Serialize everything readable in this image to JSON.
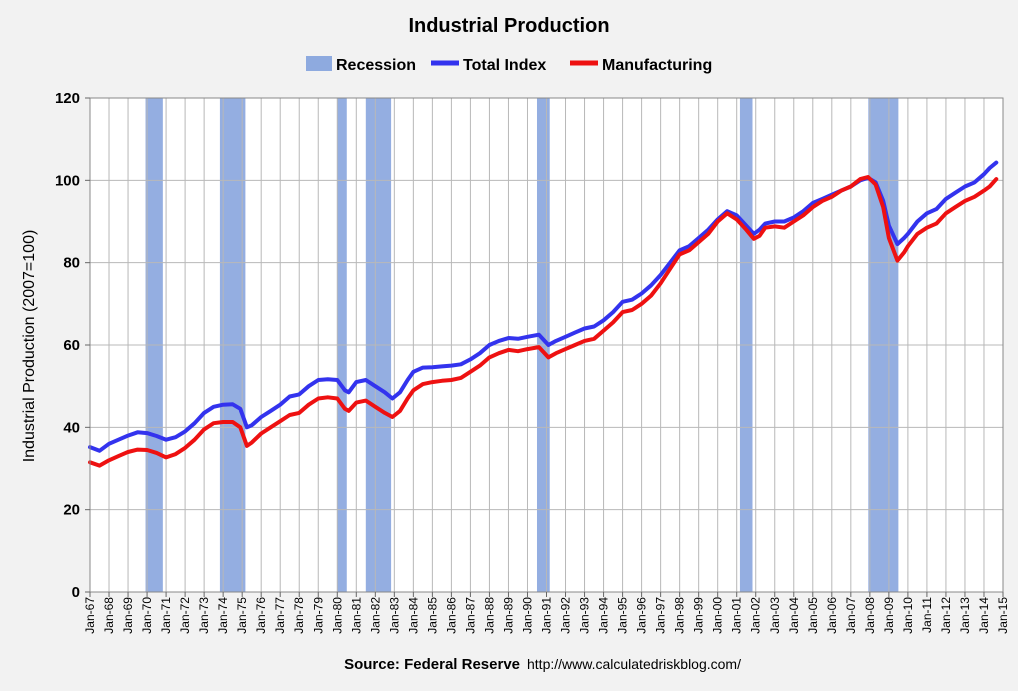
{
  "chart_data": {
    "type": "line",
    "title": "Industrial Production",
    "ylabel": "Industrial Production (2007=100)",
    "xlabel": "",
    "ylim": [
      0,
      120
    ],
    "yticks": [
      0,
      20,
      40,
      60,
      80,
      100,
      120
    ],
    "xlim": [
      1967.0,
      2015.0
    ],
    "x_tick_labels": [
      "Jan-67",
      "Jan-68",
      "Jan-69",
      "Jan-70",
      "Jan-71",
      "Jan-72",
      "Jan-73",
      "Jan-74",
      "Jan-75",
      "Jan-76",
      "Jan-77",
      "Jan-78",
      "Jan-79",
      "Jan-80",
      "Jan-81",
      "Jan-82",
      "Jan-83",
      "Jan-84",
      "Jan-85",
      "Jan-86",
      "Jan-87",
      "Jan-88",
      "Jan-89",
      "Jan-90",
      "Jan-91",
      "Jan-92",
      "Jan-93",
      "Jan-94",
      "Jan-95",
      "Jan-96",
      "Jan-97",
      "Jan-98",
      "Jan-99",
      "Jan-00",
      "Jan-01",
      "Jan-02",
      "Jan-03",
      "Jan-04",
      "Jan-05",
      "Jan-06",
      "Jan-07",
      "Jan-08",
      "Jan-09",
      "Jan-10",
      "Jan-11",
      "Jan-12",
      "Jan-13",
      "Jan-14",
      "Jan-15"
    ],
    "grid": true,
    "legend": {
      "position": "top",
      "items": [
        {
          "label": "Recession",
          "color": "#8eaadf",
          "kind": "box"
        },
        {
          "label": "Total Index",
          "color": "#3333ee",
          "kind": "line"
        },
        {
          "label": "Manufacturing",
          "color": "#ee1111",
          "kind": "line"
        }
      ]
    },
    "recessions": [
      [
        1969.92,
        1970.83
      ],
      [
        1973.83,
        1975.17
      ],
      [
        1980.0,
        1980.5
      ],
      [
        1981.5,
        1982.83
      ],
      [
        1990.5,
        1991.17
      ],
      [
        2001.17,
        2001.83
      ],
      [
        2007.92,
        2009.5
      ]
    ],
    "series": [
      {
        "name": "Total Index",
        "color": "#3333ee",
        "points": [
          [
            1967.0,
            35.2
          ],
          [
            1967.5,
            34.3
          ],
          [
            1968.0,
            36.0
          ],
          [
            1968.5,
            37.0
          ],
          [
            1969.0,
            38.0
          ],
          [
            1969.5,
            38.8
          ],
          [
            1970.0,
            38.6
          ],
          [
            1970.5,
            37.9
          ],
          [
            1971.0,
            37.0
          ],
          [
            1971.5,
            37.6
          ],
          [
            1972.0,
            39.0
          ],
          [
            1972.5,
            41.0
          ],
          [
            1973.0,
            43.5
          ],
          [
            1973.5,
            45.0
          ],
          [
            1974.0,
            45.5
          ],
          [
            1974.5,
            45.6
          ],
          [
            1974.9,
            44.5
          ],
          [
            1975.25,
            40.0
          ],
          [
            1975.5,
            40.5
          ],
          [
            1976.0,
            42.5
          ],
          [
            1976.5,
            44.0
          ],
          [
            1977.0,
            45.5
          ],
          [
            1977.5,
            47.5
          ],
          [
            1978.0,
            48.0
          ],
          [
            1978.5,
            50.0
          ],
          [
            1979.0,
            51.5
          ],
          [
            1979.5,
            51.7
          ],
          [
            1980.0,
            51.5
          ],
          [
            1980.4,
            49.0
          ],
          [
            1980.6,
            48.5
          ],
          [
            1981.0,
            51.0
          ],
          [
            1981.5,
            51.5
          ],
          [
            1982.0,
            50.0
          ],
          [
            1982.5,
            48.5
          ],
          [
            1982.9,
            47.0
          ],
          [
            1983.3,
            48.5
          ],
          [
            1983.7,
            51.5
          ],
          [
            1984.0,
            53.5
          ],
          [
            1984.5,
            54.5
          ],
          [
            1985.0,
            54.6
          ],
          [
            1985.5,
            54.8
          ],
          [
            1986.0,
            55.0
          ],
          [
            1986.5,
            55.3
          ],
          [
            1987.0,
            56.5
          ],
          [
            1987.5,
            58.0
          ],
          [
            1988.0,
            60.0
          ],
          [
            1988.5,
            61.0
          ],
          [
            1989.0,
            61.7
          ],
          [
            1989.5,
            61.5
          ],
          [
            1990.0,
            62.0
          ],
          [
            1990.6,
            62.5
          ],
          [
            1991.1,
            60.0
          ],
          [
            1991.5,
            61.0
          ],
          [
            1992.0,
            62.0
          ],
          [
            1992.5,
            63.0
          ],
          [
            1993.0,
            64.0
          ],
          [
            1993.5,
            64.5
          ],
          [
            1994.0,
            66.0
          ],
          [
            1994.5,
            68.0
          ],
          [
            1995.0,
            70.5
          ],
          [
            1995.5,
            71.0
          ],
          [
            1996.0,
            72.5
          ],
          [
            1996.5,
            74.5
          ],
          [
            1997.0,
            77.0
          ],
          [
            1997.5,
            80.0
          ],
          [
            1998.0,
            83.0
          ],
          [
            1998.5,
            84.0
          ],
          [
            1999.0,
            86.0
          ],
          [
            1999.5,
            88.0
          ],
          [
            2000.0,
            90.5
          ],
          [
            2000.5,
            92.5
          ],
          [
            2001.0,
            91.5
          ],
          [
            2001.5,
            89.0
          ],
          [
            2001.9,
            87.0
          ],
          [
            2002.2,
            88.0
          ],
          [
            2002.5,
            89.5
          ],
          [
            2003.0,
            90.0
          ],
          [
            2003.5,
            90.0
          ],
          [
            2004.0,
            91.0
          ],
          [
            2004.5,
            92.5
          ],
          [
            2005.0,
            94.5
          ],
          [
            2005.5,
            95.5
          ],
          [
            2006.0,
            96.5
          ],
          [
            2006.5,
            97.5
          ],
          [
            2007.0,
            98.5
          ],
          [
            2007.5,
            100.0
          ],
          [
            2007.9,
            100.6
          ],
          [
            2008.3,
            99.5
          ],
          [
            2008.7,
            95.0
          ],
          [
            2009.0,
            89.0
          ],
          [
            2009.45,
            84.5
          ],
          [
            2009.8,
            86.0
          ],
          [
            2010.0,
            87.0
          ],
          [
            2010.5,
            90.0
          ],
          [
            2011.0,
            92.0
          ],
          [
            2011.5,
            93.0
          ],
          [
            2012.0,
            95.5
          ],
          [
            2012.5,
            97.0
          ],
          [
            2013.0,
            98.5
          ],
          [
            2013.5,
            99.5
          ],
          [
            2014.0,
            101.5
          ],
          [
            2014.3,
            103.0
          ],
          [
            2014.65,
            104.3
          ]
        ]
      },
      {
        "name": "Manufacturing",
        "color": "#ee1111",
        "points": [
          [
            1967.0,
            31.5
          ],
          [
            1967.5,
            30.7
          ],
          [
            1968.0,
            32.0
          ],
          [
            1968.5,
            33.0
          ],
          [
            1969.0,
            34.0
          ],
          [
            1969.5,
            34.6
          ],
          [
            1970.0,
            34.5
          ],
          [
            1970.5,
            33.8
          ],
          [
            1971.0,
            32.7
          ],
          [
            1971.5,
            33.5
          ],
          [
            1972.0,
            35.0
          ],
          [
            1972.5,
            37.0
          ],
          [
            1973.0,
            39.5
          ],
          [
            1973.5,
            41.0
          ],
          [
            1974.0,
            41.3
          ],
          [
            1974.5,
            41.3
          ],
          [
            1974.9,
            40.0
          ],
          [
            1975.25,
            35.5
          ],
          [
            1975.5,
            36.3
          ],
          [
            1976.0,
            38.5
          ],
          [
            1976.5,
            40.0
          ],
          [
            1977.0,
            41.5
          ],
          [
            1977.5,
            43.0
          ],
          [
            1978.0,
            43.5
          ],
          [
            1978.5,
            45.5
          ],
          [
            1979.0,
            47.0
          ],
          [
            1979.5,
            47.3
          ],
          [
            1980.0,
            47.0
          ],
          [
            1980.4,
            44.5
          ],
          [
            1980.6,
            44.0
          ],
          [
            1981.0,
            46.0
          ],
          [
            1981.5,
            46.5
          ],
          [
            1982.0,
            45.0
          ],
          [
            1982.5,
            43.5
          ],
          [
            1982.9,
            42.5
          ],
          [
            1983.3,
            44.0
          ],
          [
            1983.7,
            47.0
          ],
          [
            1984.0,
            49.0
          ],
          [
            1984.5,
            50.5
          ],
          [
            1985.0,
            51.0
          ],
          [
            1985.5,
            51.3
          ],
          [
            1986.0,
            51.5
          ],
          [
            1986.5,
            52.0
          ],
          [
            1987.0,
            53.5
          ],
          [
            1987.5,
            55.0
          ],
          [
            1988.0,
            57.0
          ],
          [
            1988.5,
            58.0
          ],
          [
            1989.0,
            58.8
          ],
          [
            1989.5,
            58.5
          ],
          [
            1990.0,
            59.0
          ],
          [
            1990.6,
            59.5
          ],
          [
            1991.1,
            57.0
          ],
          [
            1991.5,
            58.0
          ],
          [
            1992.0,
            59.0
          ],
          [
            1992.5,
            60.0
          ],
          [
            1993.0,
            61.0
          ],
          [
            1993.5,
            61.5
          ],
          [
            1994.0,
            63.5
          ],
          [
            1994.5,
            65.5
          ],
          [
            1995.0,
            68.0
          ],
          [
            1995.5,
            68.5
          ],
          [
            1996.0,
            70.0
          ],
          [
            1996.5,
            72.0
          ],
          [
            1997.0,
            75.0
          ],
          [
            1997.5,
            78.5
          ],
          [
            1998.0,
            82.0
          ],
          [
            1998.5,
            83.0
          ],
          [
            1999.0,
            85.0
          ],
          [
            1999.5,
            87.0
          ],
          [
            2000.0,
            90.0
          ],
          [
            2000.5,
            92.0
          ],
          [
            2001.0,
            90.5
          ],
          [
            2001.5,
            88.0
          ],
          [
            2001.9,
            85.8
          ],
          [
            2002.2,
            86.5
          ],
          [
            2002.5,
            88.5
          ],
          [
            2003.0,
            88.8
          ],
          [
            2003.5,
            88.5
          ],
          [
            2004.0,
            90.0
          ],
          [
            2004.5,
            91.5
          ],
          [
            2005.0,
            93.5
          ],
          [
            2005.5,
            95.0
          ],
          [
            2006.0,
            96.0
          ],
          [
            2006.5,
            97.5
          ],
          [
            2007.0,
            98.5
          ],
          [
            2007.5,
            100.3
          ],
          [
            2007.9,
            100.8
          ],
          [
            2008.3,
            99.0
          ],
          [
            2008.7,
            93.5
          ],
          [
            2009.0,
            86.0
          ],
          [
            2009.45,
            80.5
          ],
          [
            2009.8,
            82.5
          ],
          [
            2010.0,
            84.0
          ],
          [
            2010.5,
            87.0
          ],
          [
            2011.0,
            88.5
          ],
          [
            2011.5,
            89.5
          ],
          [
            2012.0,
            92.0
          ],
          [
            2012.5,
            93.5
          ],
          [
            2013.0,
            95.0
          ],
          [
            2013.5,
            96.0
          ],
          [
            2014.0,
            97.5
          ],
          [
            2014.3,
            98.5
          ],
          [
            2014.65,
            100.3
          ]
        ]
      }
    ],
    "source": {
      "label": "Source: Federal Reserve",
      "url": "http://www.calculatedriskblog.com/"
    }
  }
}
